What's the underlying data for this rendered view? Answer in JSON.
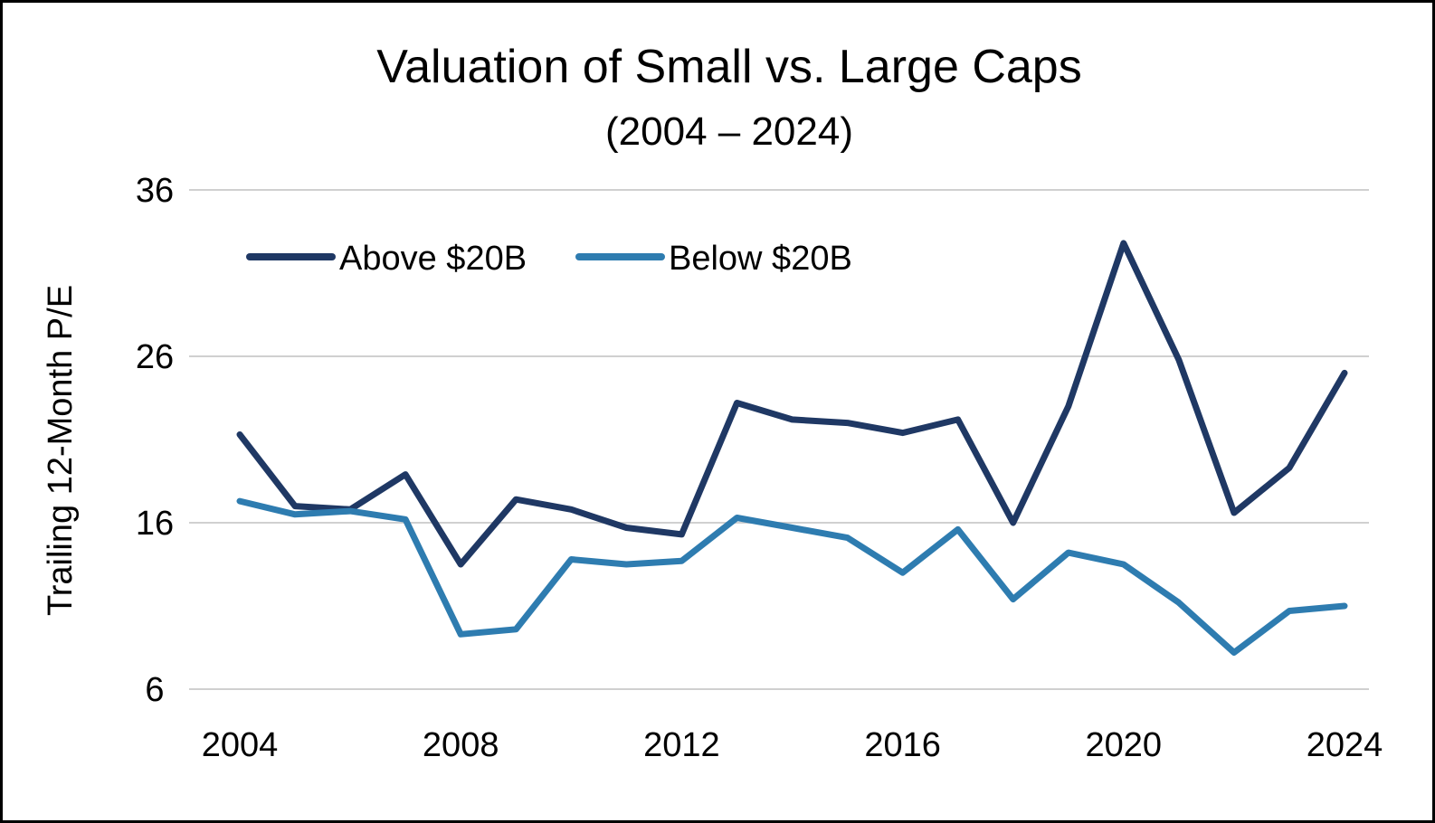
{
  "chart_data": {
    "type": "line",
    "title": "Valuation of Small vs. Large Caps",
    "subtitle": "(2004 – 2024)",
    "xlabel": "",
    "ylabel": "Trailing 12-Month P/E",
    "x": [
      2004,
      2005,
      2006,
      2007,
      2008,
      2009,
      2010,
      2011,
      2012,
      2013,
      2014,
      2015,
      2016,
      2017,
      2018,
      2019,
      2020,
      2021,
      2022,
      2023,
      2024
    ],
    "xticks": [
      "2004",
      "2008",
      "2012",
      "2016",
      "2020",
      "2024"
    ],
    "xlim": [
      2004,
      2024
    ],
    "yticks": [
      "36",
      "26",
      "16",
      "6"
    ],
    "ylim": [
      6,
      36
    ],
    "grid": true,
    "legend_position": "top-left",
    "series": [
      {
        "name": "Above $20B",
        "color": "#1f3864",
        "values": [
          21.3,
          17.0,
          16.8,
          18.9,
          13.5,
          17.4,
          16.8,
          15.7,
          15.3,
          23.2,
          22.2,
          22.0,
          21.4,
          22.2,
          16.0,
          23.0,
          32.8,
          25.8,
          16.6,
          19.3,
          25.0
        ]
      },
      {
        "name": "Below $20B",
        "color": "#2e7cb0",
        "values": [
          17.3,
          16.5,
          16.7,
          16.2,
          9.3,
          9.6,
          13.8,
          13.5,
          13.7,
          16.3,
          15.7,
          15.1,
          13.0,
          15.6,
          11.4,
          14.2,
          13.5,
          11.2,
          8.2,
          10.7,
          11.0
        ]
      }
    ]
  }
}
